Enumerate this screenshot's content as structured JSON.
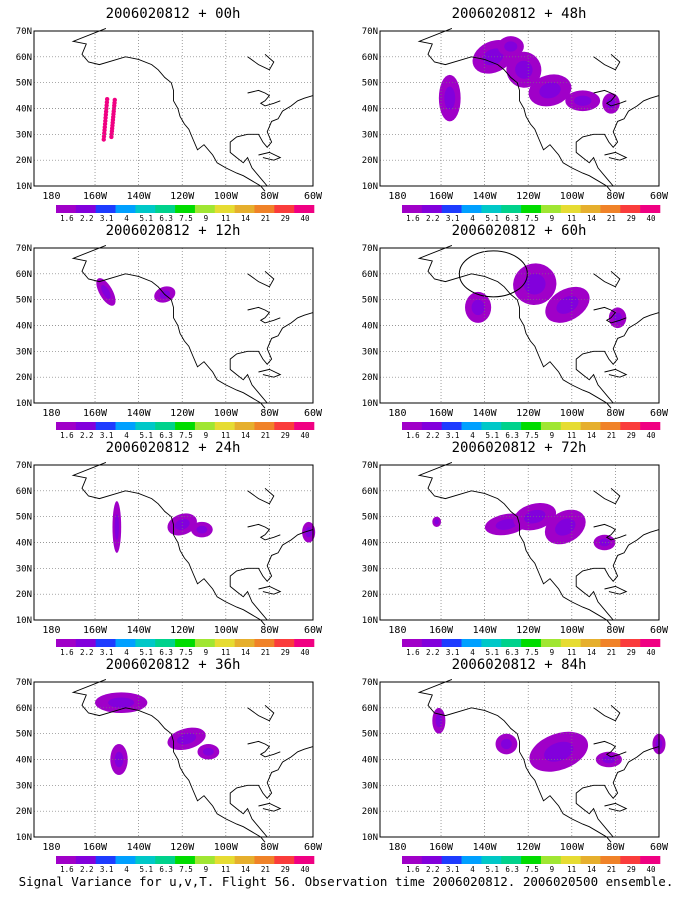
{
  "panels": [
    {
      "title": "2006020812 + 00h"
    },
    {
      "title": "2006020812 + 48h"
    },
    {
      "title": "2006020812 + 12h"
    },
    {
      "title": "2006020812 + 60h"
    },
    {
      "title": "2006020812 + 24h"
    },
    {
      "title": "2006020812 + 72h"
    },
    {
      "title": "2006020812 + 36h"
    },
    {
      "title": "2006020812 + 84h"
    }
  ],
  "axes": {
    "y_ticks": [
      "70N",
      "60N",
      "50N",
      "40N",
      "30N",
      "20N",
      "10N"
    ],
    "x_ticks": [
      "180",
      "160W",
      "140W",
      "120W",
      "100W",
      "80W",
      "60W"
    ]
  },
  "colorbar": {
    "labels": [
      "1.6",
      "2.2",
      "3.1",
      "4",
      "5.1",
      "6.3",
      "7.5",
      "9",
      "11",
      "14",
      "21",
      "29",
      "40"
    ],
    "colors": [
      "#a000c8",
      "#8200dc",
      "#1e3cff",
      "#00a0ff",
      "#00c8c8",
      "#00d28c",
      "#00dc00",
      "#a0e632",
      "#e6dc32",
      "#e6af2d",
      "#f08228",
      "#fa3c3c",
      "#f00082"
    ]
  },
  "caption": "Signal Variance for u,v,T. Flight 56. Observation time 2006020812. 2006020500 ensemble."
}
